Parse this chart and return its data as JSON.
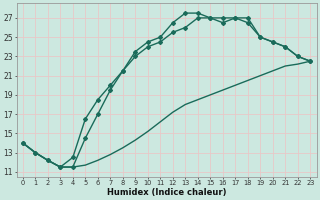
{
  "xlabel": "Humidex (Indice chaleur)",
  "bg_color": "#cce8e0",
  "grid_color": "#e8c8c8",
  "line_color": "#1a6b5a",
  "xlim": [
    -0.5,
    23.5
  ],
  "ylim": [
    10.5,
    28.5
  ],
  "xticks": [
    0,
    1,
    2,
    3,
    4,
    5,
    6,
    7,
    8,
    9,
    10,
    11,
    12,
    13,
    14,
    15,
    16,
    17,
    18,
    19,
    20,
    21,
    22,
    23
  ],
  "yticks": [
    11,
    13,
    15,
    17,
    19,
    21,
    23,
    25,
    27
  ],
  "line_diag_x": [
    0,
    1,
    2,
    3,
    4,
    5,
    6,
    7,
    8,
    9,
    10,
    11,
    12,
    13,
    14,
    15,
    16,
    17,
    18,
    19,
    20,
    21,
    22,
    23
  ],
  "line_diag_y": [
    14.0,
    13.0,
    12.2,
    11.5,
    11.5,
    11.7,
    12.2,
    12.8,
    13.5,
    14.3,
    15.2,
    16.2,
    17.2,
    18.0,
    18.5,
    19.0,
    19.5,
    20.0,
    20.5,
    21.0,
    21.5,
    22.0,
    22.2,
    22.5
  ],
  "line_mid_x": [
    0,
    1,
    2,
    3,
    4,
    5,
    6,
    7,
    8,
    9,
    10,
    11,
    12,
    13,
    14,
    15,
    16,
    17,
    18,
    19,
    20,
    21,
    22,
    23
  ],
  "line_mid_y": [
    14.0,
    13.0,
    12.2,
    11.5,
    11.5,
    14.5,
    17.0,
    19.5,
    21.5,
    23.5,
    24.5,
    25.0,
    26.5,
    27.5,
    27.5,
    27.0,
    27.0,
    27.0,
    26.5,
    25.0,
    24.5,
    24.0,
    23.0,
    22.5
  ],
  "line_low_x": [
    0,
    1,
    2,
    3,
    4,
    5,
    6,
    7,
    8,
    9,
    10,
    11,
    12,
    13,
    14,
    15,
    16,
    17,
    18,
    19,
    20,
    21,
    22,
    23
  ],
  "line_low_y": [
    14.0,
    13.0,
    12.2,
    11.5,
    12.5,
    16.5,
    18.5,
    20.0,
    21.5,
    23.0,
    24.0,
    24.5,
    25.5,
    26.0,
    27.0,
    27.0,
    26.5,
    27.0,
    27.0,
    25.0,
    24.5,
    24.0,
    23.0,
    22.5
  ]
}
